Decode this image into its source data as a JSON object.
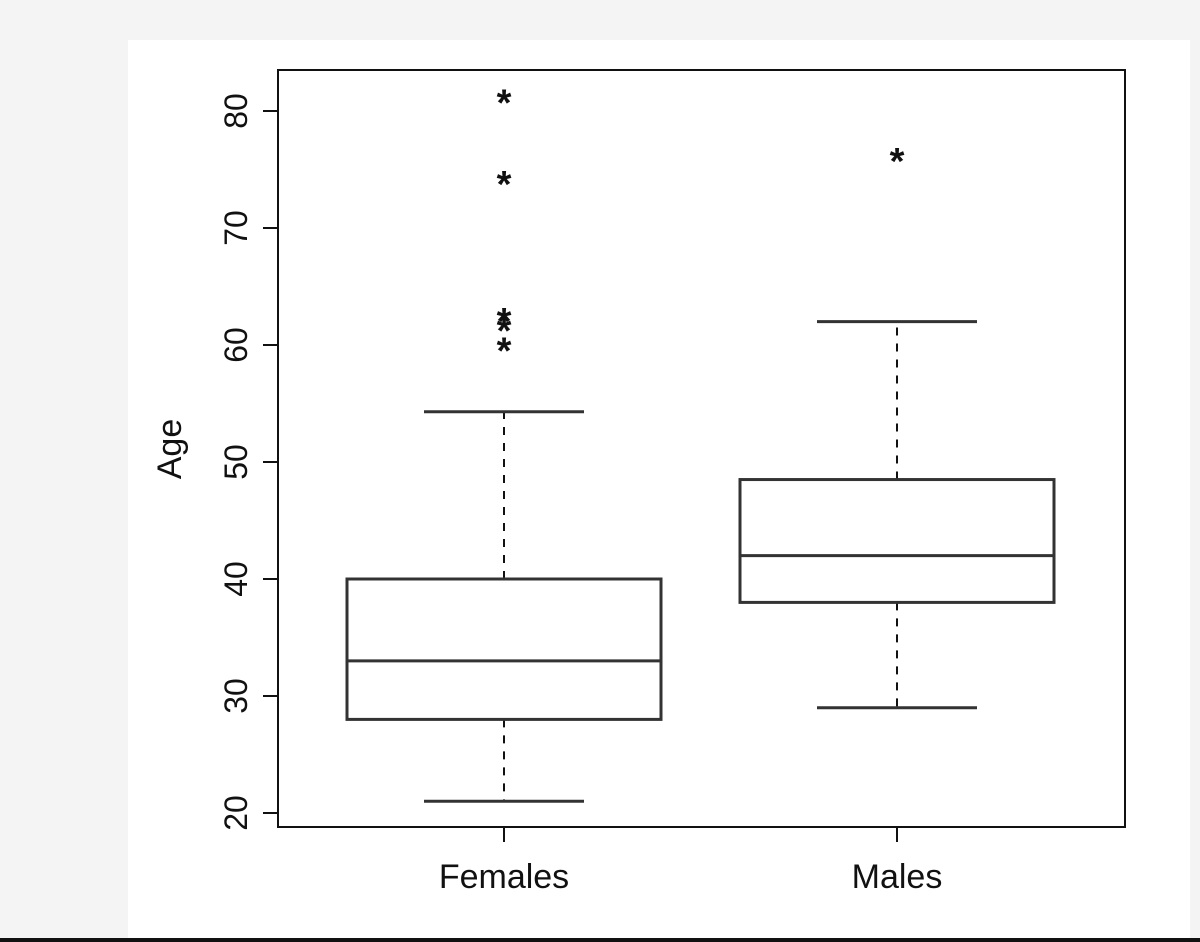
{
  "chart_data": {
    "type": "boxplot",
    "ylabel": "Age",
    "xlabel": "",
    "title": "",
    "ylim": [
      18.5,
      84.5
    ],
    "yticks": [
      20,
      30,
      40,
      50,
      60,
      70,
      80
    ],
    "ytick_labels": [
      "20",
      "30",
      "40",
      "50",
      "60",
      "70",
      "80"
    ],
    "outlier_marker": "*",
    "whisker_style": "dashed",
    "grid": false,
    "colors": {
      "axis": "#111111",
      "box": "#333333",
      "background": "#ffffff"
    },
    "groups": [
      {
        "label": "Females",
        "whisker_low": 21,
        "q1": 28,
        "median": 33,
        "q3": 40,
        "whisker_high": 54.3,
        "outliers": [
          59.8,
          61.5,
          62.3,
          74,
          81
        ]
      },
      {
        "label": "Males",
        "whisker_low": 29,
        "q1": 38,
        "median": 42,
        "q3": 48.5,
        "whisker_high": 62,
        "outliers": [
          76
        ]
      }
    ]
  }
}
